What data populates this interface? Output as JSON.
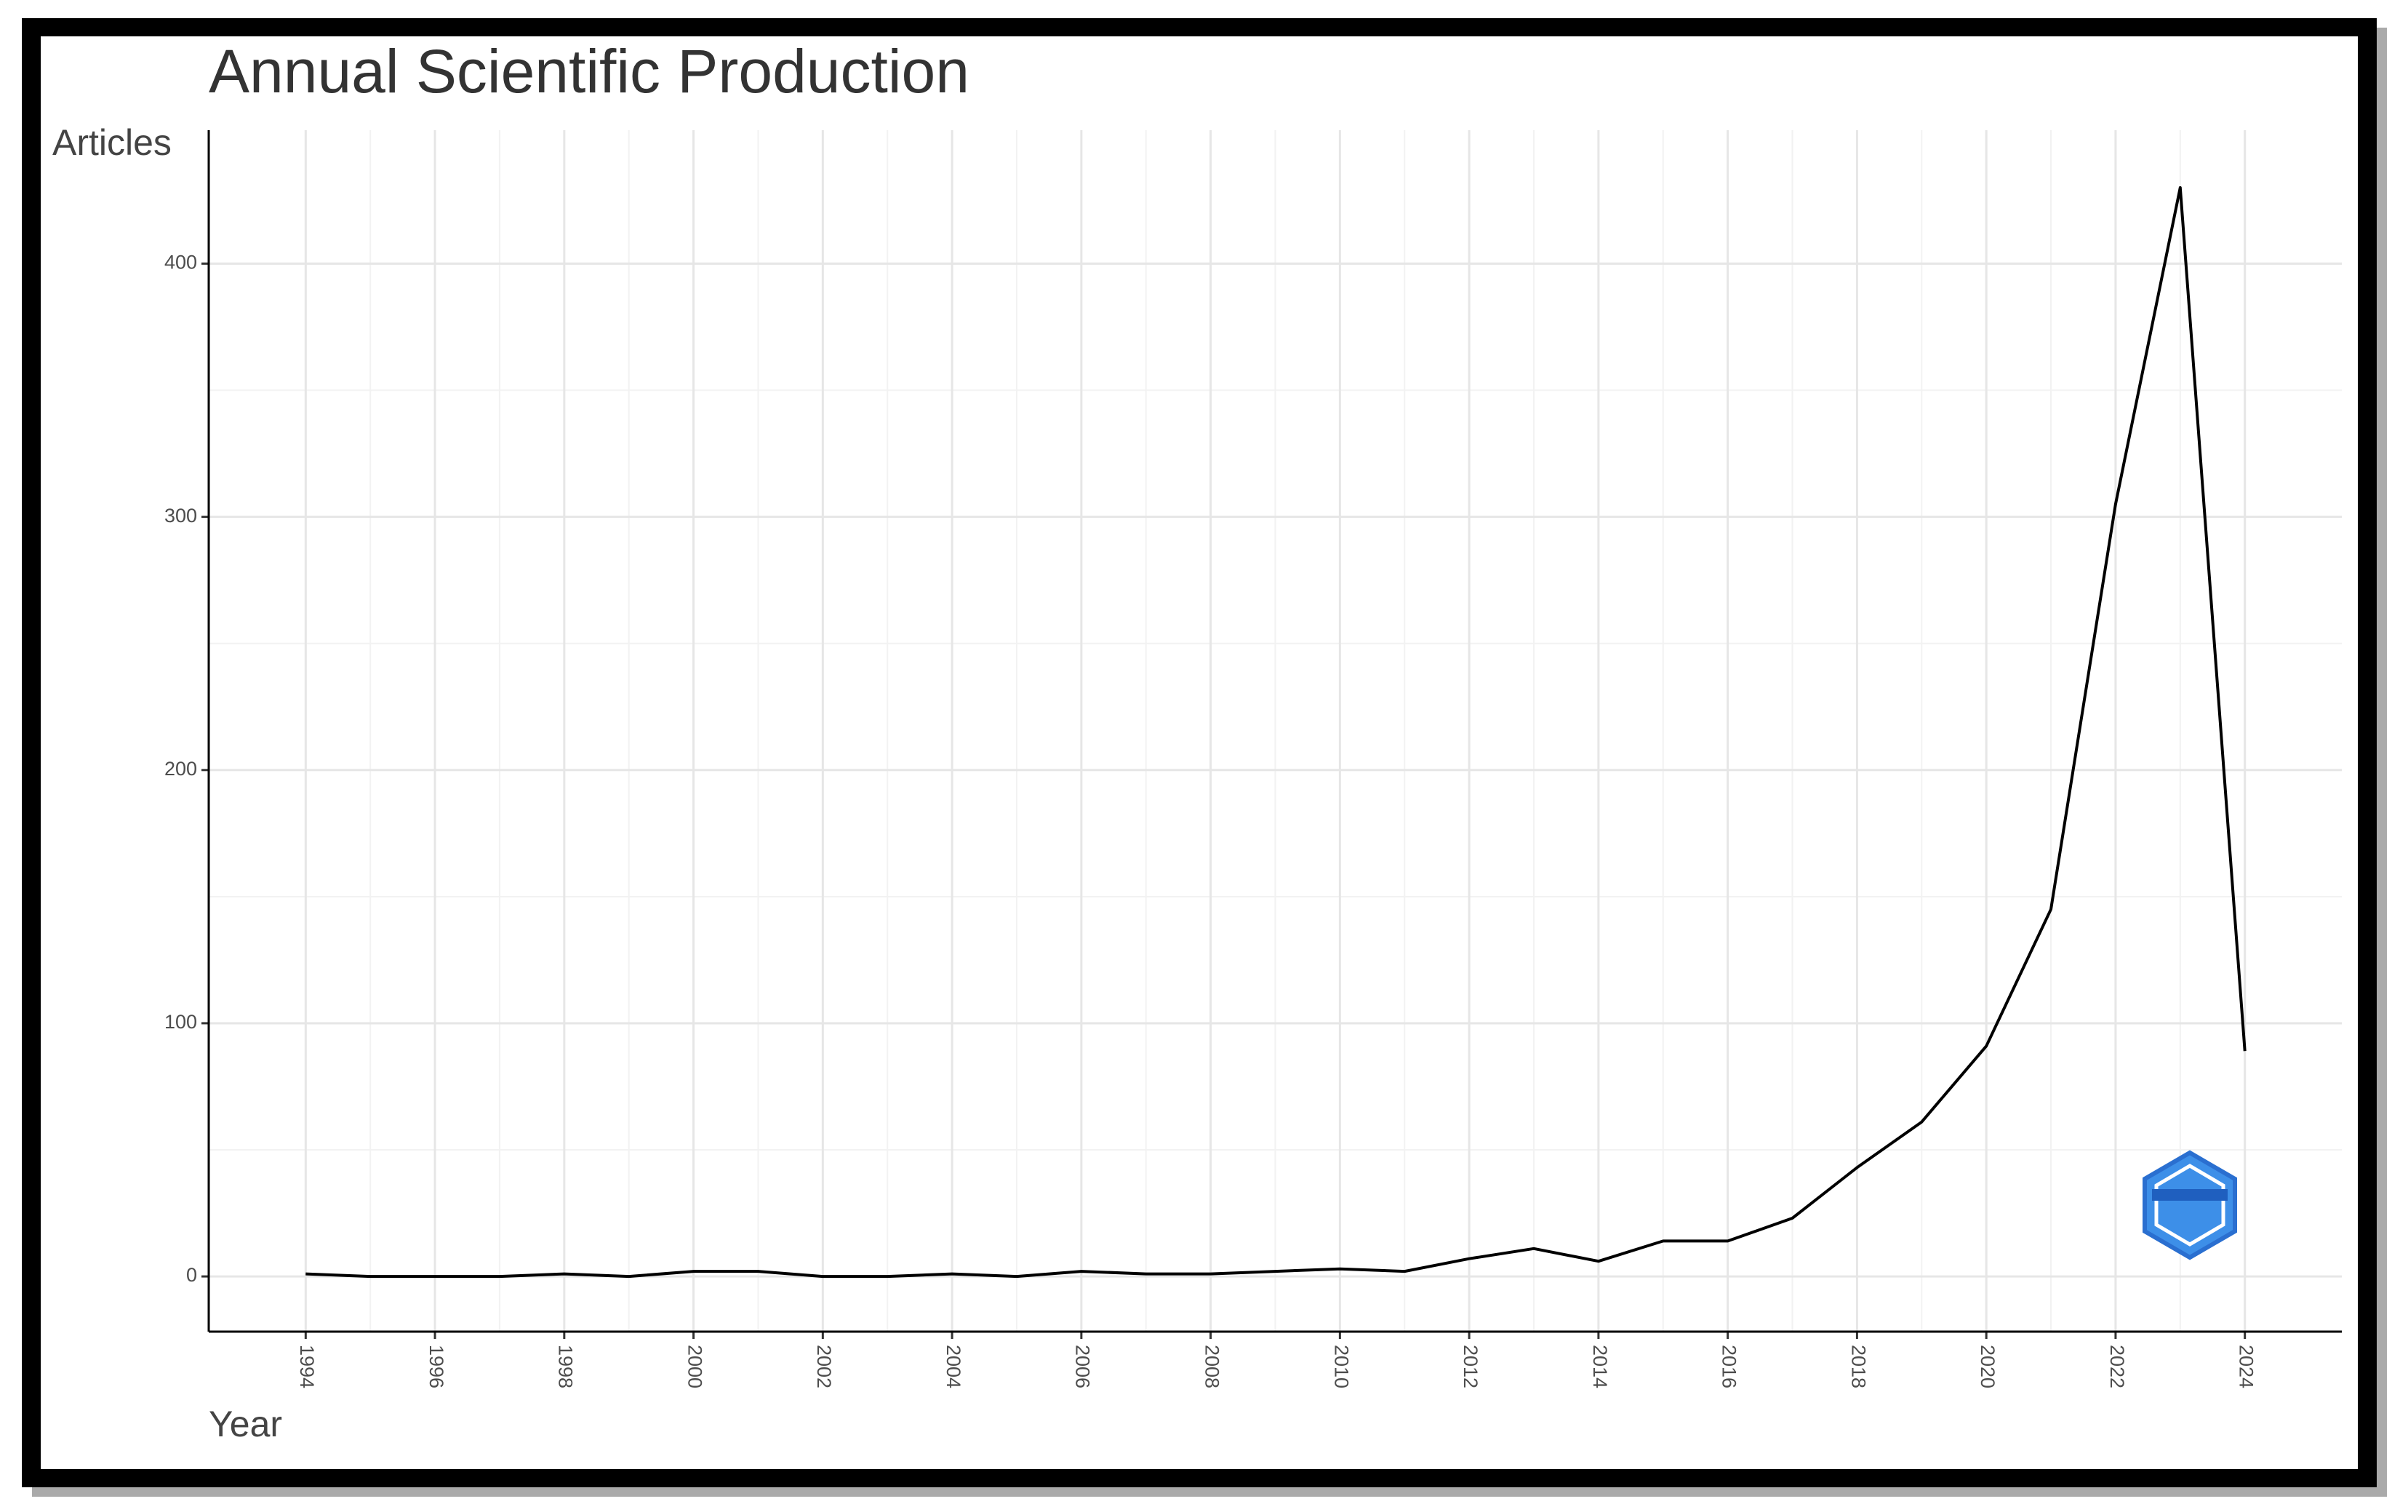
{
  "chart_data": {
    "type": "line",
    "title": "Annual Scientific Production",
    "x_label": "Year",
    "y_label": "Articles",
    "x": [
      1994,
      1995,
      1996,
      1997,
      1998,
      1999,
      2000,
      2001,
      2002,
      2003,
      2004,
      2005,
      2006,
      2007,
      2008,
      2009,
      2010,
      2011,
      2012,
      2013,
      2014,
      2015,
      2016,
      2017,
      2018,
      2019,
      2020,
      2021,
      2022,
      2023,
      2024
    ],
    "series": [
      {
        "name": "Articles",
        "color": "#000000",
        "values": [
          1,
          0,
          0,
          0,
          1,
          0,
          2,
          2,
          0,
          0,
          1,
          0,
          2,
          1,
          1,
          2,
          3,
          2,
          7,
          11,
          6,
          14,
          14,
          23,
          43,
          61,
          91,
          145,
          305,
          430,
          89
        ]
      }
    ],
    "xlim": [
      1992.5,
      2025.5
    ],
    "ylim": [
      -21.8,
      452.7
    ],
    "xticks": [
      1994,
      1996,
      1998,
      2000,
      2002,
      2004,
      2006,
      2008,
      2010,
      2012,
      2014,
      2016,
      2018,
      2020,
      2022,
      2024
    ],
    "yticks": [
      0,
      100,
      200,
      300,
      400
    ],
    "grid": true
  }
}
